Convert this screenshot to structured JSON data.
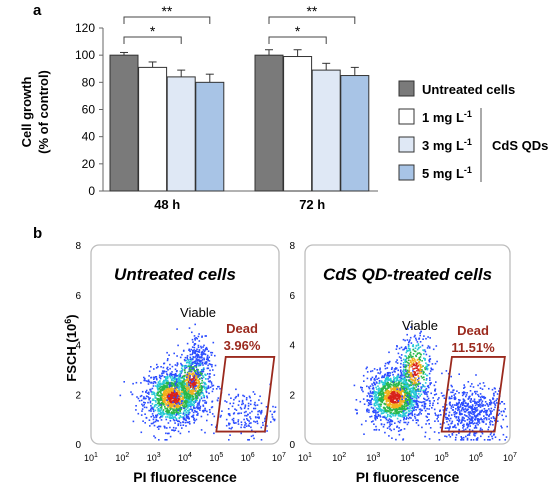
{
  "panel_labels": {
    "a": "a",
    "b": "b"
  },
  "colors": {
    "untreated": "#7a7a7a",
    "dose1": "#ffffff",
    "dose3": "#dfe8f5",
    "dose5": "#a8c4e6",
    "dead_gate": "#9b2a1e",
    "dead_text": "#9b2a1e"
  },
  "chart_data": [
    {
      "type": "bar",
      "categories": [
        "48 h",
        "72 h"
      ],
      "series": [
        {
          "name": "Untreated cells",
          "values": [
            100,
            100
          ],
          "errors": [
            2,
            4
          ]
        },
        {
          "name": "1 mg L",
          "values": [
            91,
            99
          ],
          "errors": [
            4,
            5
          ]
        },
        {
          "name": "3 mg L",
          "values": [
            84,
            89
          ],
          "errors": [
            5,
            5
          ]
        },
        {
          "name": "5 mg L",
          "values": [
            80,
            85
          ],
          "errors": [
            6,
            6
          ]
        }
      ],
      "ylabel_line1": "Cell growth",
      "ylabel_line2": "(% of control)",
      "ylim": [
        0,
        120
      ],
      "yticks": [
        "0",
        "20",
        "40",
        "60",
        "80",
        "100",
        "120"
      ],
      "legend": {
        "untreated": "Untreated cells",
        "dose_items": [
          {
            "label": "1 mg L",
            "sup": "-1"
          },
          {
            "label": "3 mg L",
            "sup": "-1"
          },
          {
            "label": "5 mg L",
            "sup": "-1"
          }
        ],
        "group_label": "CdS QDs"
      },
      "significance": [
        {
          "group": 0,
          "from": 0,
          "to": 2,
          "label": "*"
        },
        {
          "group": 0,
          "from": 0,
          "to": 3,
          "label": "**"
        },
        {
          "group": 1,
          "from": 0,
          "to": 2,
          "label": "*"
        },
        {
          "group": 1,
          "from": 0,
          "to": 3,
          "label": "**"
        }
      ]
    },
    {
      "type": "scatter",
      "panels": [
        {
          "title": "Untreated cells",
          "viable": "Viable",
          "dead_label": "Dead",
          "dead_pct": "3.96%"
        },
        {
          "title": "CdS QD-treated cells",
          "viable": "Viable",
          "dead_label": "Dead",
          "dead_pct": "11.51%"
        }
      ],
      "xlabel": "PI fluorescence",
      "ylabel": "FSCH (10",
      "ylabel_sup": "6",
      "ylabel_close": ")",
      "xtick_base": "10",
      "xtick_exps": [
        "1",
        "2",
        "3",
        "4",
        "5",
        "6",
        "7"
      ],
      "yticks": [
        "0",
        "2",
        "4",
        "6",
        "8"
      ],
      "ylim": [
        0,
        8
      ],
      "xlim_log10": [
        1,
        7
      ]
    }
  ]
}
